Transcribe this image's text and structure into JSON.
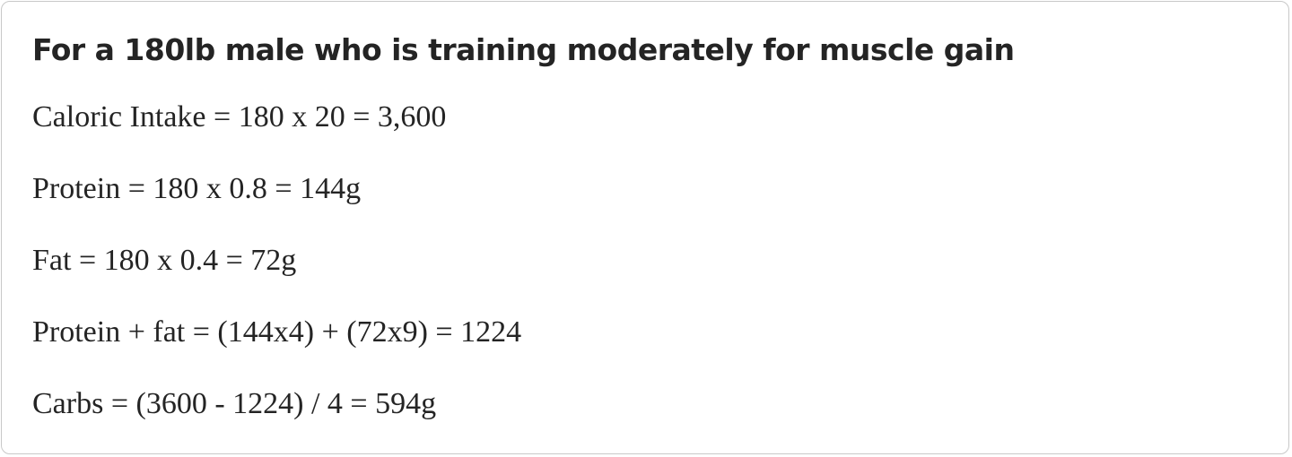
{
  "heading": "For a 180lb male who is training moderately for muscle gain",
  "lines": [
    "Caloric Intake = 180 x 20 = 3,600",
    "Protein = 180 x 0.8 = 144g",
    "Fat = 180 x 0.4 = 72g",
    "Protein + fat = (144x4) + (72x9) = 1224",
    "Carbs = (3600 - 1224) / 4 = 594g"
  ]
}
